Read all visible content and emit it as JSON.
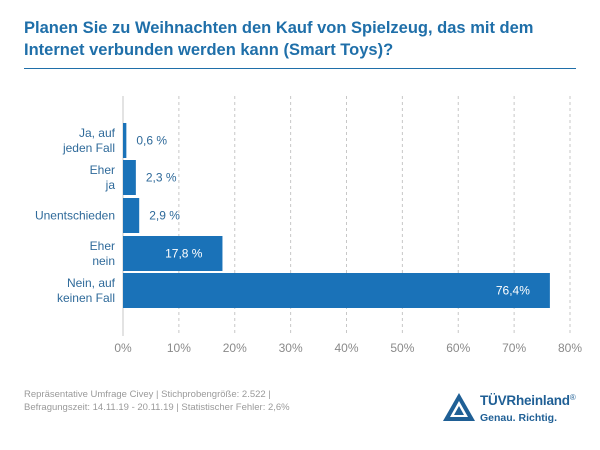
{
  "title": "Planen Sie zu Weihnachten den Kauf von Spielzeug, das mit dem Internet verbunden werden kann (Smart Toys)?",
  "colors": {
    "accent": "#1f6fa9",
    "bar": "#1a72b8",
    "grid": "#c7c7c7",
    "muted": "#9a9a9a"
  },
  "chart_data": {
    "type": "bar",
    "orientation": "horizontal",
    "categories": [
      [
        "Ja, auf",
        "jeden Fall"
      ],
      [
        "Eher",
        "ja"
      ],
      [
        "Unentschieden"
      ],
      [
        "Eher",
        "nein"
      ],
      [
        "Nein, auf",
        "keinen Fall"
      ]
    ],
    "values": [
      0.6,
      2.3,
      2.9,
      17.8,
      76.4
    ],
    "value_labels": [
      "0,6 %",
      "2,3 %",
      "2,9 %",
      "17,8 %",
      "76,4%"
    ],
    "xlim": [
      0,
      80
    ],
    "xticks": [
      0,
      10,
      20,
      30,
      40,
      50,
      60,
      70,
      80
    ],
    "xtick_labels": [
      "0%",
      "10%",
      "20%",
      "30%",
      "40%",
      "50%",
      "60%",
      "70%",
      "80%"
    ],
    "grid": "vertical dashed",
    "xlabel": "",
    "ylabel": ""
  },
  "footer": {
    "source_line1": "Repräsentative Umfrage Civey | Stichprobengröße: 2.522 |",
    "source_line2": "Befragungszeit: 14.11.19 - 20.11.19 | Statistischer Fehler: 2,6%"
  },
  "brand": {
    "name": "TÜVRheinland",
    "registered": "®",
    "slogan": "Genau. Richtig.",
    "logo_icon": "triangle-logo-icon"
  }
}
